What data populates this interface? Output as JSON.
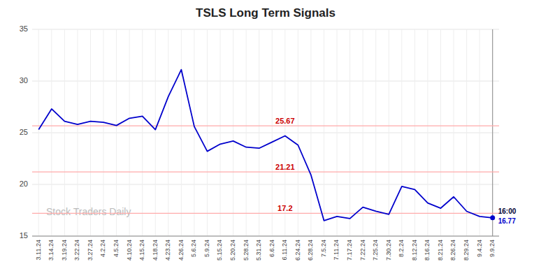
{
  "chart_data": {
    "type": "line",
    "title": "TSLS Long Term Signals",
    "categories": [
      "3.11.24",
      "3.14.24",
      "3.19.24",
      "3.22.24",
      "3.27.24",
      "4.2.24",
      "4.5.24",
      "4.10.24",
      "4.15.24",
      "4.18.24",
      "4.23.24",
      "4.26.24",
      "5.6.24",
      "5.9.24",
      "5.15.24",
      "5.20.24",
      "5.28.24",
      "5.31.24",
      "6.6.24",
      "6.11.24",
      "6.24.24",
      "6.28.24",
      "7.5.24",
      "7.11.24",
      "7.17.24",
      "7.22.24",
      "7.25.24",
      "7.30.24",
      "8.2.24",
      "8.12.24",
      "8.16.24",
      "8.21.24",
      "8.26.24",
      "8.29.24",
      "9.4.24",
      "9.9.24"
    ],
    "values": [
      25.3,
      27.3,
      26.1,
      25.8,
      26.1,
      26.0,
      25.7,
      26.4,
      26.6,
      25.3,
      28.5,
      31.1,
      25.6,
      23.2,
      23.9,
      24.2,
      23.6,
      23.5,
      24.1,
      24.7,
      23.8,
      20.9,
      16.5,
      16.9,
      16.7,
      17.8,
      17.4,
      17.1,
      19.8,
      19.5,
      18.2,
      17.7,
      18.8,
      17.4,
      16.9,
      16.77
    ],
    "color": "#0000cc",
    "ylim": [
      15,
      35
    ],
    "yticks": [
      15,
      20,
      25,
      30,
      35
    ],
    "grid": true,
    "hlines": [
      {
        "value": 25.67,
        "label": "25.67",
        "color": "#cc0000"
      },
      {
        "value": 21.21,
        "label": "21.21",
        "color": "#cc0000"
      },
      {
        "value": 17.2,
        "label": "17.2",
        "color": "#cc0000"
      }
    ],
    "annotation": "16:00",
    "watermark": "Stock Traders Daily"
  }
}
